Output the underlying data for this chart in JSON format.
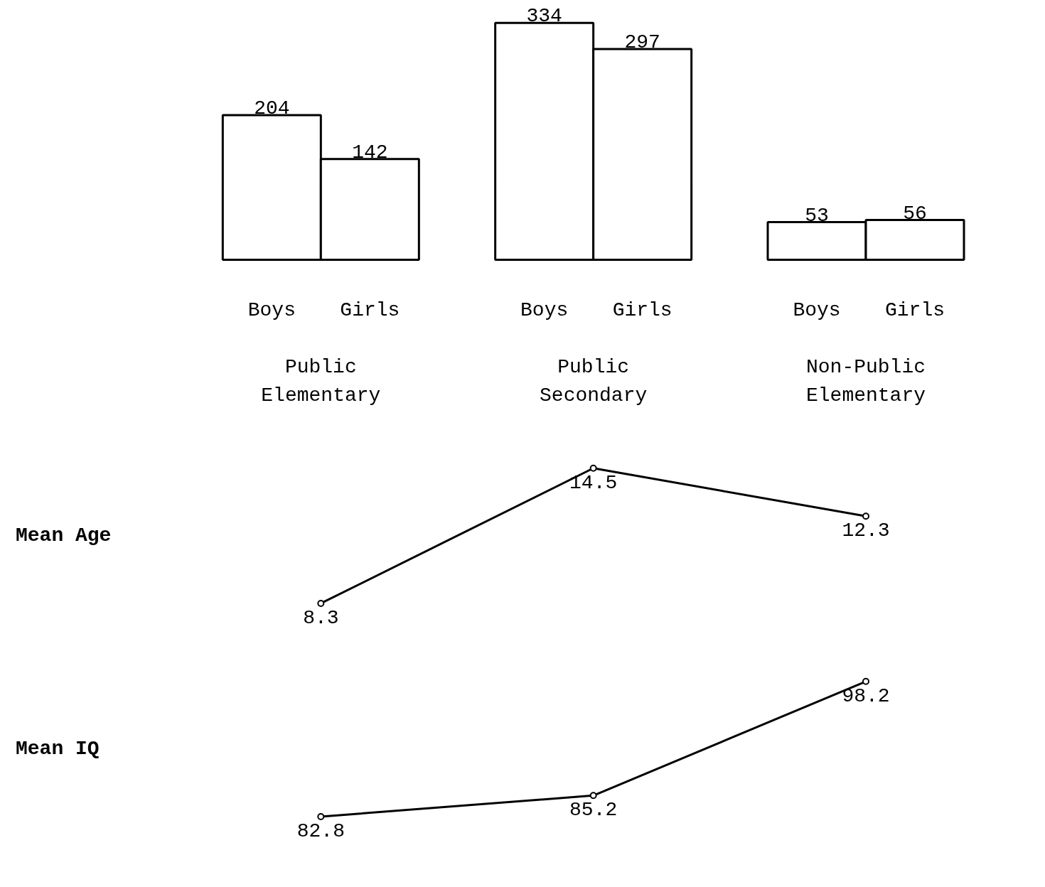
{
  "chart_data": [
    {
      "type": "bar",
      "categories": [
        "Public\nElementary",
        "Public\nSecondary",
        "Non-Public\nElementary"
      ],
      "series": [
        {
          "name": "Boys",
          "color": "#ffffff",
          "values": [
            204,
            334,
            53
          ]
        },
        {
          "name": "Girls",
          "color": "#ffffff",
          "values": [
            142,
            297,
            56
          ]
        }
      ],
      "data_labels": true,
      "grid": false,
      "tick_labels": false
    },
    {
      "type": "line",
      "categories": [
        null,
        null,
        null
      ],
      "ylabel": "Mean Age",
      "series": [
        {
          "color": "#000000",
          "values": [
            8.3,
            14.5,
            12.3
          ]
        }
      ],
      "data_labels": true,
      "marker": "circle",
      "line_style": "solid",
      "grid": false,
      "tick_labels": false
    },
    {
      "type": "line",
      "categories": [
        null,
        null,
        null
      ],
      "ylabel": "Mean IQ",
      "series": [
        {
          "color": "#000000",
          "values": [
            82.8,
            85.2,
            98.2
          ]
        }
      ],
      "data_labels": true,
      "marker": "circle",
      "line_style": "solid",
      "grid": false,
      "tick_labels": false
    }
  ]
}
